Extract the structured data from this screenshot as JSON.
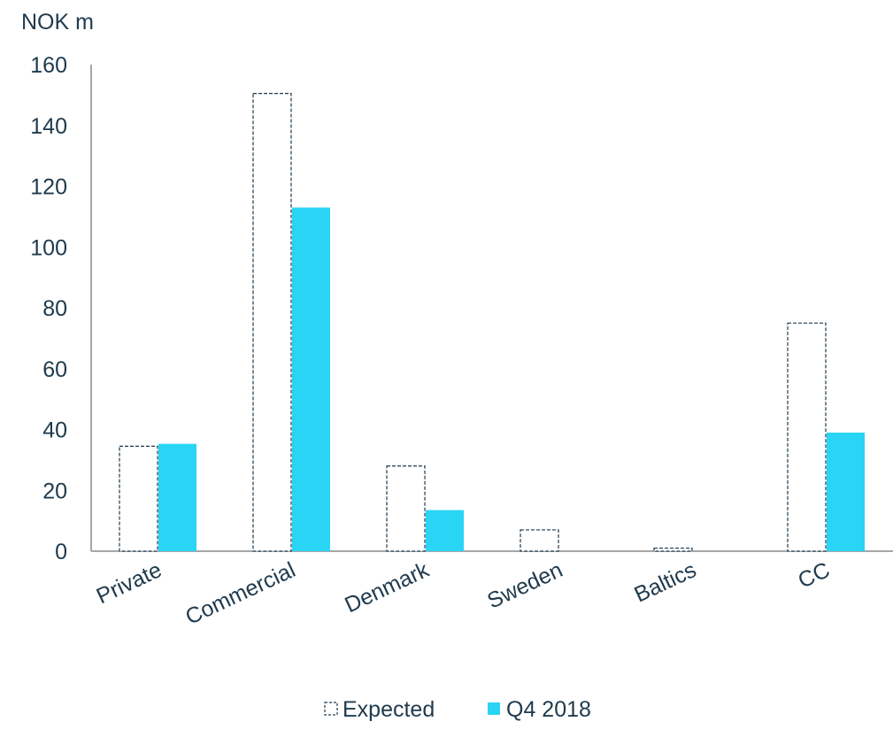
{
  "chart_data": {
    "type": "bar",
    "unit_label": "NOK m",
    "categories": [
      "Private",
      "Commercial",
      "Denmark",
      "Sweden",
      "Baltics",
      "CC"
    ],
    "series": [
      {
        "name": "Expected",
        "values": [
          34.5,
          150.5,
          28,
          7,
          1,
          75
        ],
        "style": "dashed-outline",
        "color": "#1f3a4d"
      },
      {
        "name": "Q4 2018",
        "values": [
          35.3,
          113,
          13.5,
          0,
          0,
          39
        ],
        "style": "filled",
        "color": "#29d4f5"
      }
    ],
    "yticks": [
      "0",
      "20",
      "40",
      "60",
      "80",
      "100",
      "120",
      "140",
      "160"
    ],
    "ylim": [
      0,
      160
    ],
    "grid": false,
    "legend_position": "bottom-center"
  }
}
